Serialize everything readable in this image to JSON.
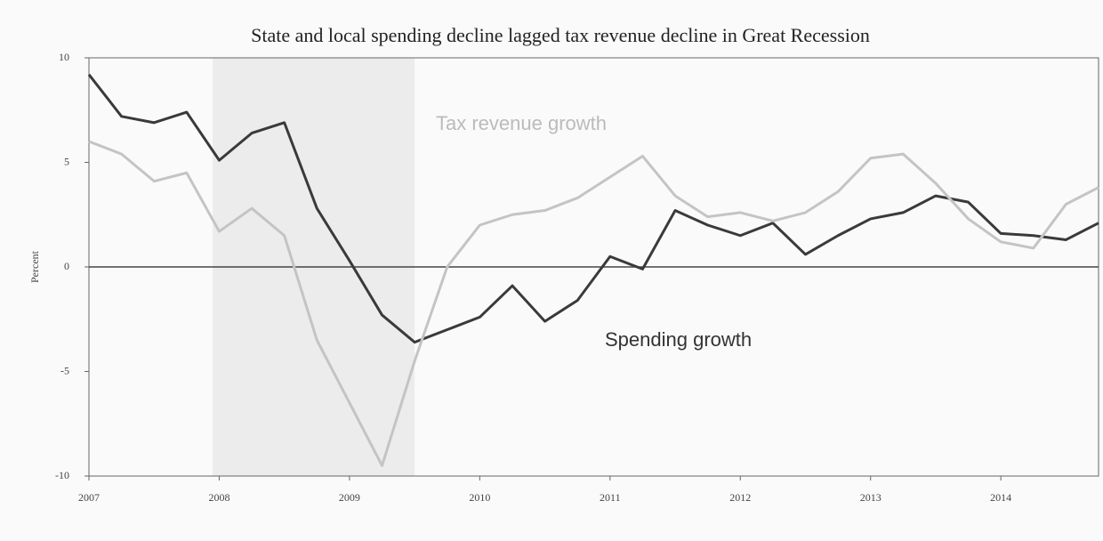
{
  "chart_data": {
    "type": "line",
    "title": "State and local spending decline lagged tax revenue decline in Great Recession",
    "y_label": "Percent",
    "annotations": [
      "Tax revenue growth",
      "Spending growth"
    ],
    "x": [
      2007,
      2007.25,
      2007.5,
      2007.75,
      2008,
      2008.25,
      2008.5,
      2008.75,
      2009,
      2009.25,
      2009.5,
      2009.75,
      2010,
      2010.25,
      2010.5,
      2010.75,
      2011,
      2011.25,
      2011.5,
      2011.75,
      2012,
      2012.25,
      2012.5,
      2012.75,
      2013,
      2013.25,
      2013.5,
      2013.75,
      2014,
      2014.25,
      2014.5,
      2014.75
    ],
    "series": [
      {
        "name": "Spending growth",
        "color": "#3a3a3a",
        "values": [
          9.2,
          7.2,
          6.9,
          7.4,
          5.1,
          6.4,
          6.9,
          2.8,
          0.3,
          -2.3,
          -3.6,
          -3.0,
          -2.4,
          -0.9,
          -2.6,
          -1.6,
          0.5,
          -0.1,
          2.7,
          2.0,
          1.5,
          2.1,
          0.6,
          1.5,
          2.3,
          2.6,
          3.4,
          3.1,
          1.6,
          1.5,
          1.3,
          2.1
        ]
      },
      {
        "name": "Tax revenue growth",
        "color": "#c4c4c4",
        "values": [
          6.0,
          5.4,
          4.1,
          4.5,
          1.7,
          2.8,
          1.5,
          -3.5,
          -6.5,
          -9.5,
          -4.5,
          0.0,
          2.0,
          2.5,
          2.7,
          3.3,
          4.3,
          5.3,
          3.4,
          2.4,
          2.6,
          2.2,
          2.6,
          3.6,
          5.2,
          5.4,
          4.0,
          2.3,
          1.2,
          0.9,
          3.0,
          3.8
        ]
      }
    ],
    "xlim": [
      2007,
      2014.75
    ],
    "xticks": [
      2007,
      2008,
      2009,
      2010,
      2011,
      2012,
      2013,
      2014
    ],
    "ylim": [
      -10,
      10
    ],
    "yticks": [
      -10,
      -5,
      0,
      5,
      10
    ],
    "shaded": [
      2007.95,
      2009.5
    ],
    "shade_color": "#ececec"
  }
}
